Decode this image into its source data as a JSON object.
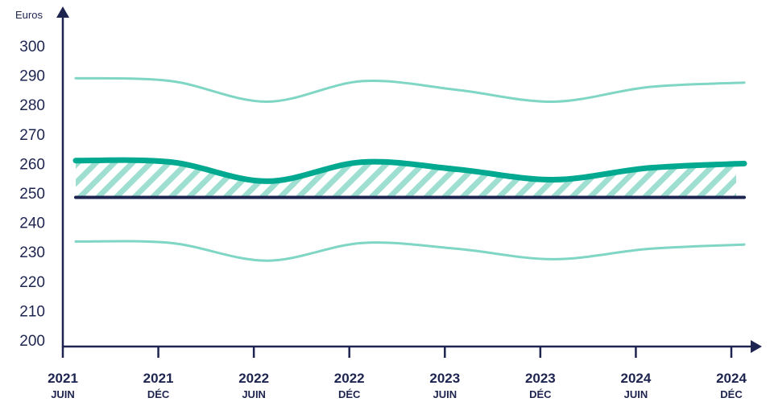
{
  "chart_data": {
    "type": "line",
    "ylabel": "Euros",
    "ylim": [
      200,
      300
    ],
    "yticks": [
      200,
      210,
      220,
      230,
      240,
      250,
      260,
      270,
      280,
      290,
      300
    ],
    "categories": [
      {
        "year": "2021",
        "month": "JUIN"
      },
      {
        "year": "2021",
        "month": "DÉC"
      },
      {
        "year": "2022",
        "month": "JUIN"
      },
      {
        "year": "2022",
        "month": "DÉC"
      },
      {
        "year": "2023",
        "month": "JUIN"
      },
      {
        "year": "2023",
        "month": "DÉC"
      },
      {
        "year": "2024",
        "month": "JUIN"
      },
      {
        "year": "2024",
        "month": "DÉC"
      }
    ],
    "series": [
      {
        "key": "upper",
        "values": [
          289,
          288,
          281,
          288,
          285,
          281,
          286,
          287.5
        ],
        "color": "#7fd6c4"
      },
      {
        "key": "central",
        "values": [
          261,
          260.5,
          254,
          260.5,
          258,
          254.5,
          258.5,
          260
        ],
        "color": "#00a98f"
      },
      {
        "key": "lower",
        "values": [
          233.5,
          233,
          227,
          233,
          231,
          227.5,
          231,
          232.5
        ],
        "color": "#7fd6c4"
      },
      {
        "key": "reference",
        "values": [
          248.5,
          248.5,
          248.5,
          248.5,
          248.5,
          248.5,
          248.5,
          248.5
        ],
        "color": "#1d2450"
      }
    ],
    "hatch_color": "#9edfd2",
    "axis_color": "#1d2450",
    "grid": false,
    "legend": "none"
  }
}
